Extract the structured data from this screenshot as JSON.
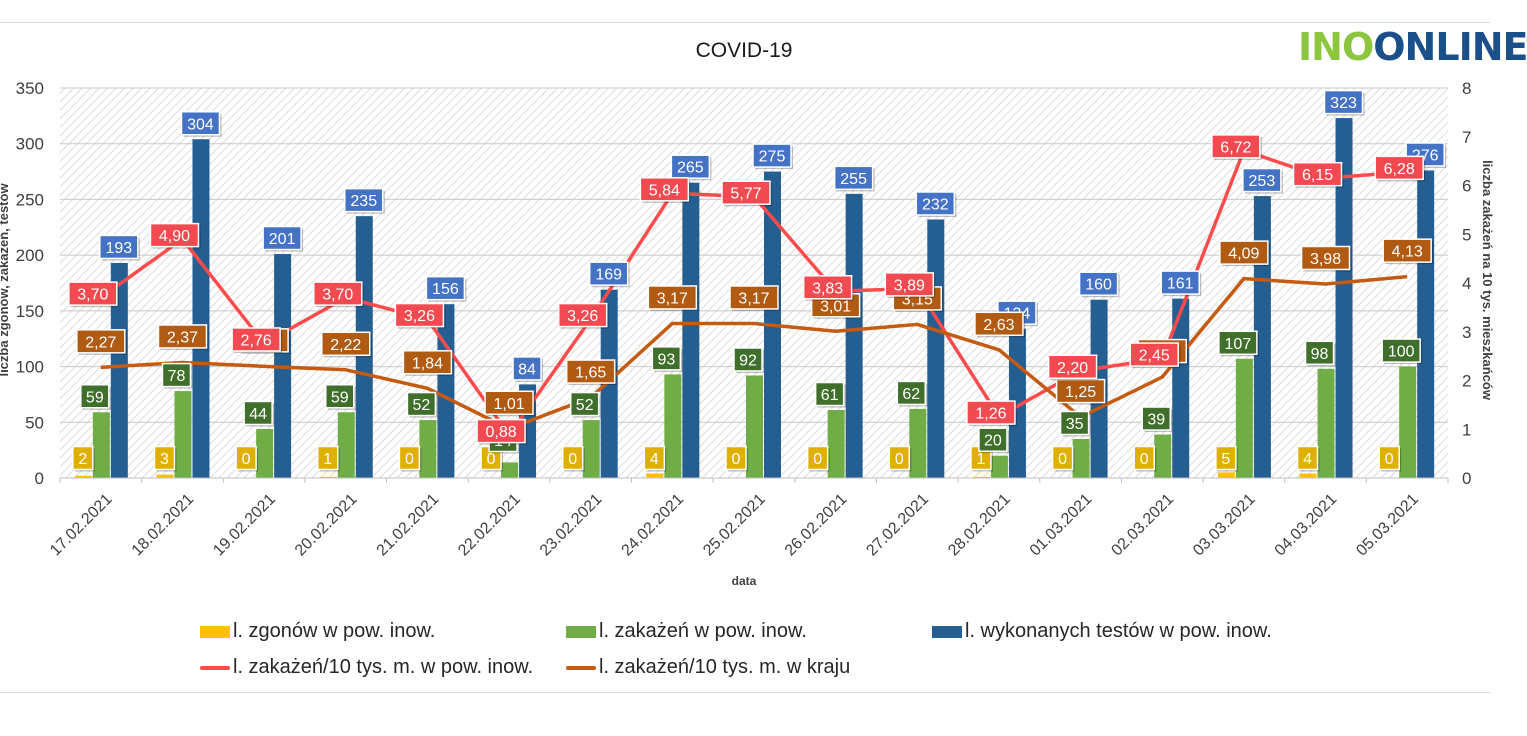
{
  "logo": {
    "part1": "INO",
    "part2": "ONLINE"
  },
  "chart_data": {
    "type": "bar",
    "title": "COVID-19",
    "xlabel": "data",
    "ylabel": "liczba zgonów, zakażeń, testów",
    "y2label": "liczba zakażeń na 10 tys. mieszkańców",
    "ylim": [
      0,
      350
    ],
    "y2lim": [
      0,
      8
    ],
    "yticks": [
      0,
      50,
      100,
      150,
      200,
      250,
      300,
      350
    ],
    "y2ticks": [
      0,
      1,
      2,
      3,
      4,
      5,
      6,
      7,
      8
    ],
    "categories": [
      "17.02.2021",
      "18.02.2021",
      "19.02.2021",
      "20.02.2021",
      "21.02.2021",
      "22.02.2021",
      "23.02.2021",
      "24.02.2021",
      "25.02.2021",
      "26.02.2021",
      "27.02.2021",
      "28.02.2021",
      "01.03.2021",
      "02.03.2021",
      "03.03.2021",
      "04.03.2021",
      "05.03.2021"
    ],
    "series": [
      {
        "name": "l. zgonów w pow. inow.",
        "type": "bar",
        "axis": "left",
        "color": "#ffc000",
        "values": [
          2,
          3,
          0,
          1,
          0,
          0,
          0,
          4,
          0,
          0,
          0,
          1,
          0,
          0,
          5,
          4,
          0
        ],
        "labels": [
          "2",
          "3",
          "0",
          "1",
          "0",
          "0",
          "0",
          "4",
          "0",
          "0",
          "0",
          "1",
          "0",
          "0",
          "5",
          "4",
          "0"
        ]
      },
      {
        "name": "l. zakażeń w pow. inow.",
        "type": "bar",
        "axis": "left",
        "color": "#70ad47",
        "values": [
          59,
          78,
          44,
          59,
          52,
          14,
          52,
          93,
          92,
          61,
          62,
          20,
          35,
          39,
          107,
          98,
          100
        ],
        "labels": [
          "59",
          "78",
          "44",
          "59",
          "52",
          "14",
          "52",
          "93",
          "92",
          "61",
          "62",
          "20",
          "35",
          "39",
          "107",
          "98",
          "100"
        ]
      },
      {
        "name": "l. wykonanych testów w pow. inow.",
        "type": "bar",
        "axis": "left",
        "color": "#255e91",
        "values": [
          193,
          304,
          201,
          235,
          156,
          84,
          169,
          265,
          275,
          255,
          232,
          134,
          160,
          161,
          253,
          323,
          276
        ],
        "labels": [
          "193",
          "304",
          "201",
          "235",
          "156",
          "84",
          "169",
          "265",
          "275",
          "255",
          "232",
          "134",
          "160",
          "161",
          "253",
          "323",
          "276"
        ]
      },
      {
        "name": "l. zakażeń/10 tys. m. w pow. inow.",
        "type": "line",
        "axis": "right",
        "color": "#ff4b4b",
        "values": [
          3.7,
          4.9,
          2.76,
          3.7,
          3.26,
          0.88,
          3.26,
          5.84,
          5.77,
          3.83,
          3.89,
          1.26,
          2.2,
          2.45,
          6.72,
          6.15,
          6.28
        ],
        "labels": [
          "3,70",
          "4,90",
          "2,76",
          "3,70",
          "3,26",
          "0,88",
          "3,26",
          "5,84",
          "5,77",
          "3,83",
          "3,89",
          "1,26",
          "2,20",
          "2,45",
          "6,72",
          "6,15",
          "6,28"
        ]
      },
      {
        "name": "l. zakażeń/10 tys. m. w kraju",
        "type": "line",
        "axis": "right",
        "color": "#c55a11",
        "values": [
          2.27,
          2.37,
          2.29,
          2.22,
          1.84,
          1.01,
          1.65,
          3.17,
          3.17,
          3.01,
          3.15,
          2.63,
          1.25,
          2.07,
          4.09,
          3.98,
          4.13
        ],
        "labels": [
          "2,27",
          "2,37",
          "2,29",
          "2,22",
          "1,84",
          "1,01",
          "1,65",
          "3,17",
          "3,17",
          "3,01",
          "3,15",
          "2,63",
          "1,25",
          "2,07",
          "4,09",
          "3,98",
          "4,13"
        ]
      }
    ],
    "legend_position": "bottom"
  }
}
